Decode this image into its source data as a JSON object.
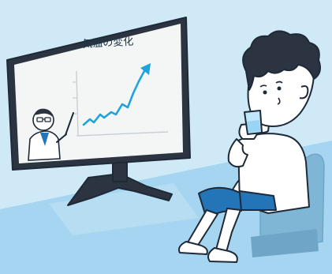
{
  "tv": {
    "caption": "気温の変化"
  },
  "chart_data": {
    "type": "line",
    "title": "気温の変化",
    "trend": "rising"
  },
  "colors": {
    "background": "#cfe9f7",
    "floor": "#a5d5f0",
    "tv_frame": "#2c3441",
    "screen": "#f4f6f6",
    "chart_line": "#1fa3df",
    "shorts": "#2474b8",
    "glass": "#bfe6fa",
    "chair": "#7fb6d6",
    "outline": "#1e2a38"
  }
}
